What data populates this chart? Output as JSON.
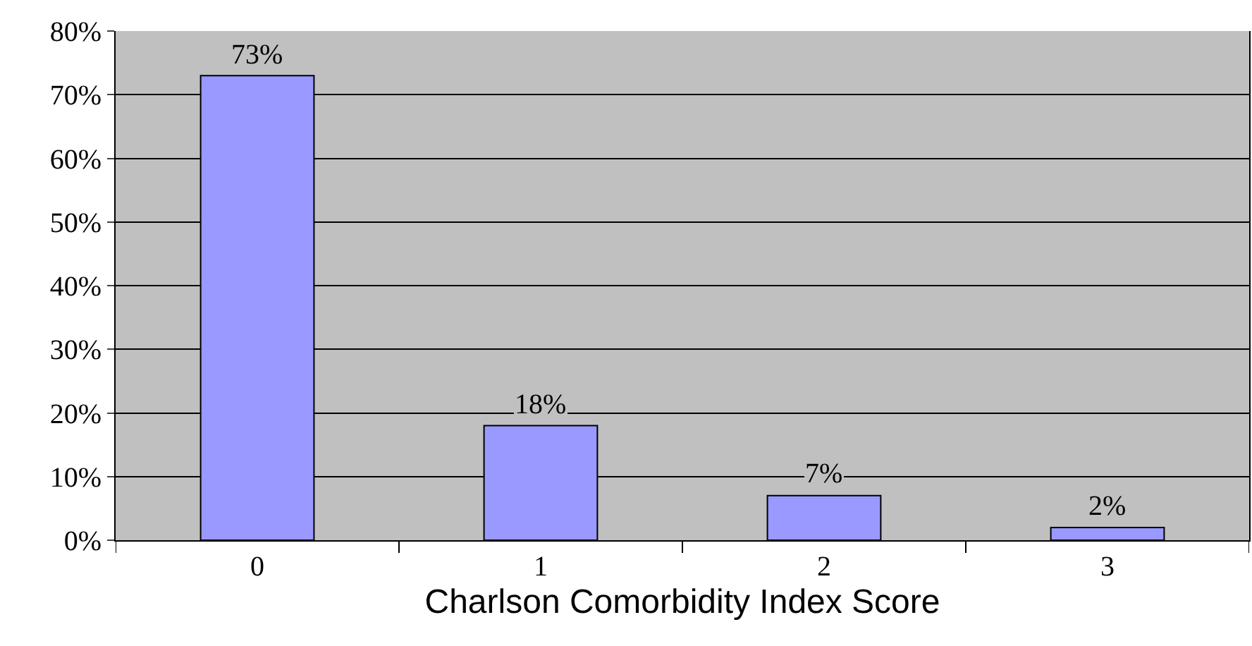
{
  "chart_data": {
    "type": "bar",
    "xlabel": "Charlson Comorbidity Index Score",
    "categories": [
      "0",
      "1",
      "2",
      "3"
    ],
    "values": [
      73,
      18,
      7,
      2
    ],
    "value_labels": [
      "73%",
      "18%",
      "7%",
      "2%"
    ],
    "color": "#9999ff",
    "ylim": [
      0,
      80
    ],
    "yticks": [
      {
        "value": 0,
        "label": "0%"
      },
      {
        "value": 10,
        "label": "10%"
      },
      {
        "value": 20,
        "label": "20%"
      },
      {
        "value": 30,
        "label": "30%"
      },
      {
        "value": 40,
        "label": "40%"
      },
      {
        "value": 50,
        "label": "50%"
      },
      {
        "value": 60,
        "label": "60%"
      },
      {
        "value": 70,
        "label": "70%"
      },
      {
        "value": 80,
        "label": "80%"
      }
    ],
    "grid": "y"
  }
}
